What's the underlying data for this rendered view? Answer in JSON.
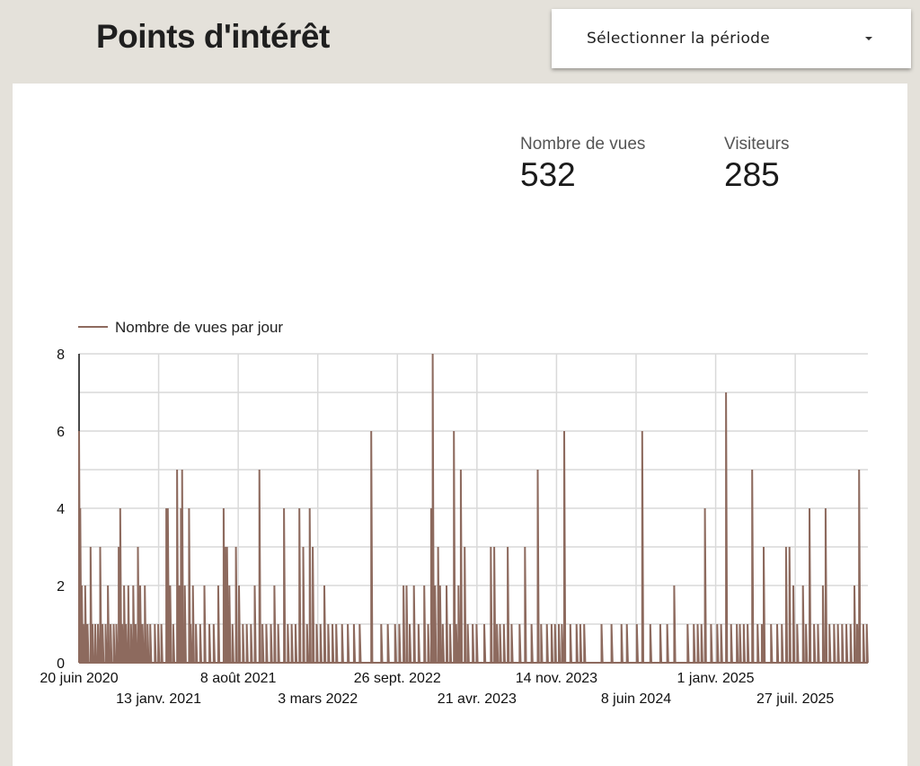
{
  "header": {
    "title": "Points d'intérêt",
    "period_label": "Sélectionner la période"
  },
  "kpis": [
    {
      "label": "Nombre de vues",
      "value": "532"
    },
    {
      "label": "Visiteurs",
      "value": "285"
    }
  ],
  "colors": {
    "series": "#8d6a5e",
    "grid": "#d9d9d9",
    "background": "#e4e1da"
  },
  "chart_data": {
    "type": "line",
    "title": "",
    "xlabel": "",
    "ylabel": "",
    "ylim": [
      0,
      8
    ],
    "yticks": [
      "0",
      "2",
      "4",
      "6",
      "8"
    ],
    "xlim": [
      "2020-06-20",
      "2026-02-01"
    ],
    "xticks": [
      {
        "date": "2020-06-20",
        "label": "20 juin 2020"
      },
      {
        "date": "2021-01-13",
        "label": "13 janv. 2021"
      },
      {
        "date": "2021-08-08",
        "label": "8 août 2021"
      },
      {
        "date": "2022-03-03",
        "label": "3 mars 2022"
      },
      {
        "date": "2022-09-26",
        "label": "26 sept. 2022"
      },
      {
        "date": "2023-04-21",
        "label": "21 avr. 2023"
      },
      {
        "date": "2023-11-14",
        "label": "14 nov. 2023"
      },
      {
        "date": "2024-06-08",
        "label": "8 juin 2024"
      },
      {
        "date": "2025-01-01",
        "label": "1 janv. 2025"
      },
      {
        "date": "2025-07-27",
        "label": "27 juil. 2025"
      }
    ],
    "grid": true,
    "legend_position": "top-left",
    "series": [
      {
        "name": "Nombre de vues par jour",
        "baseline": 0,
        "points": [
          [
            "2020-06-20",
            6
          ],
          [
            "2020-06-23",
            4
          ],
          [
            "2020-06-27",
            2
          ],
          [
            "2020-07-01",
            1
          ],
          [
            "2020-07-06",
            2
          ],
          [
            "2020-07-12",
            1
          ],
          [
            "2020-07-20",
            3
          ],
          [
            "2020-07-25",
            1
          ],
          [
            "2020-08-01",
            1
          ],
          [
            "2020-08-08",
            1
          ],
          [
            "2020-08-14",
            3
          ],
          [
            "2020-08-20",
            1
          ],
          [
            "2020-08-28",
            1
          ],
          [
            "2020-09-03",
            2
          ],
          [
            "2020-09-10",
            1
          ],
          [
            "2020-09-18",
            1
          ],
          [
            "2020-09-25",
            1
          ],
          [
            "2020-10-01",
            3
          ],
          [
            "2020-10-05",
            4
          ],
          [
            "2020-10-10",
            1
          ],
          [
            "2020-10-15",
            2
          ],
          [
            "2020-10-20",
            1
          ],
          [
            "2020-10-26",
            2
          ],
          [
            "2020-11-02",
            1
          ],
          [
            "2020-11-08",
            2
          ],
          [
            "2020-11-14",
            1
          ],
          [
            "2020-11-20",
            3
          ],
          [
            "2020-11-26",
            2
          ],
          [
            "2020-12-02",
            1
          ],
          [
            "2020-12-08",
            2
          ],
          [
            "2020-12-15",
            1
          ],
          [
            "2020-12-22",
            1
          ],
          [
            "2021-01-03",
            1
          ],
          [
            "2021-01-12",
            1
          ],
          [
            "2021-01-20",
            1
          ],
          [
            "2021-02-02",
            4
          ],
          [
            "2021-02-06",
            4
          ],
          [
            "2021-02-12",
            2
          ],
          [
            "2021-02-20",
            1
          ],
          [
            "2021-03-02",
            5
          ],
          [
            "2021-03-08",
            2
          ],
          [
            "2021-03-12",
            4
          ],
          [
            "2021-03-15",
            5
          ],
          [
            "2021-03-22",
            2
          ],
          [
            "2021-04-02",
            4
          ],
          [
            "2021-04-06",
            1
          ],
          [
            "2021-04-12",
            2
          ],
          [
            "2021-04-20",
            1
          ],
          [
            "2021-05-01",
            1
          ],
          [
            "2021-05-12",
            2
          ],
          [
            "2021-05-25",
            1
          ],
          [
            "2021-06-05",
            1
          ],
          [
            "2021-06-17",
            2
          ],
          [
            "2021-07-01",
            4
          ],
          [
            "2021-07-05",
            3
          ],
          [
            "2021-07-10",
            3
          ],
          [
            "2021-07-16",
            2
          ],
          [
            "2021-07-24",
            1
          ],
          [
            "2021-08-02",
            3
          ],
          [
            "2021-08-10",
            2
          ],
          [
            "2021-08-20",
            1
          ],
          [
            "2021-08-30",
            1
          ],
          [
            "2021-09-10",
            1
          ],
          [
            "2021-09-20",
            2
          ],
          [
            "2021-10-02",
            5
          ],
          [
            "2021-10-10",
            1
          ],
          [
            "2021-10-20",
            1
          ],
          [
            "2021-11-01",
            1
          ],
          [
            "2021-11-10",
            2
          ],
          [
            "2021-11-20",
            1
          ],
          [
            "2021-12-05",
            4
          ],
          [
            "2021-12-15",
            1
          ],
          [
            "2021-12-25",
            1
          ],
          [
            "2022-01-04",
            1
          ],
          [
            "2022-01-14",
            4
          ],
          [
            "2022-01-24",
            3
          ],
          [
            "2022-02-03",
            1
          ],
          [
            "2022-02-10",
            4
          ],
          [
            "2022-02-18",
            3
          ],
          [
            "2022-02-28",
            1
          ],
          [
            "2022-03-10",
            1
          ],
          [
            "2022-03-20",
            2
          ],
          [
            "2022-03-30",
            1
          ],
          [
            "2022-04-10",
            1
          ],
          [
            "2022-04-20",
            1
          ],
          [
            "2022-05-05",
            1
          ],
          [
            "2022-05-20",
            1
          ],
          [
            "2022-06-05",
            1
          ],
          [
            "2022-06-20",
            1
          ],
          [
            "2022-07-20",
            6
          ],
          [
            "2022-08-15",
            1
          ],
          [
            "2022-09-01",
            1
          ],
          [
            "2022-09-20",
            1
          ],
          [
            "2022-10-01",
            1
          ],
          [
            "2022-10-12",
            2
          ],
          [
            "2022-10-20",
            2
          ],
          [
            "2022-10-28",
            1
          ],
          [
            "2022-11-08",
            2
          ],
          [
            "2022-11-20",
            1
          ],
          [
            "2022-12-05",
            2
          ],
          [
            "2022-12-15",
            1
          ],
          [
            "2022-12-23",
            4
          ],
          [
            "2022-12-27",
            8
          ],
          [
            "2023-01-02",
            2
          ],
          [
            "2023-01-10",
            3
          ],
          [
            "2023-01-15",
            2
          ],
          [
            "2023-01-22",
            1
          ],
          [
            "2023-02-01",
            2
          ],
          [
            "2023-02-10",
            1
          ],
          [
            "2023-02-20",
            6
          ],
          [
            "2023-02-26",
            1
          ],
          [
            "2023-03-04",
            2
          ],
          [
            "2023-03-10",
            5
          ],
          [
            "2023-03-20",
            3
          ],
          [
            "2023-03-28",
            1
          ],
          [
            "2023-04-10",
            1
          ],
          [
            "2023-04-20",
            1
          ],
          [
            "2023-05-10",
            1
          ],
          [
            "2023-05-27",
            3
          ],
          [
            "2023-06-05",
            3
          ],
          [
            "2023-06-12",
            1
          ],
          [
            "2023-06-20",
            1
          ],
          [
            "2023-06-30",
            1
          ],
          [
            "2023-07-10",
            3
          ],
          [
            "2023-07-20",
            1
          ],
          [
            "2023-08-10",
            1
          ],
          [
            "2023-08-24",
            3
          ],
          [
            "2023-09-10",
            1
          ],
          [
            "2023-09-26",
            5
          ],
          [
            "2023-10-05",
            1
          ],
          [
            "2023-10-20",
            1
          ],
          [
            "2023-11-01",
            1
          ],
          [
            "2023-11-10",
            1
          ],
          [
            "2023-11-20",
            1
          ],
          [
            "2023-11-28",
            1
          ],
          [
            "2023-12-04",
            6
          ],
          [
            "2023-12-20",
            1
          ],
          [
            "2024-01-05",
            1
          ],
          [
            "2024-01-15",
            1
          ],
          [
            "2024-01-25",
            1
          ],
          [
            "2024-03-10",
            1
          ],
          [
            "2024-04-05",
            1
          ],
          [
            "2024-05-01",
            1
          ],
          [
            "2024-05-15",
            1
          ],
          [
            "2024-06-10",
            1
          ],
          [
            "2024-06-24",
            6
          ],
          [
            "2024-07-15",
            1
          ],
          [
            "2024-08-10",
            1
          ],
          [
            "2024-08-28",
            1
          ],
          [
            "2024-09-15",
            2
          ],
          [
            "2024-10-20",
            1
          ],
          [
            "2024-11-05",
            1
          ],
          [
            "2024-11-15",
            1
          ],
          [
            "2024-11-25",
            1
          ],
          [
            "2024-12-04",
            4
          ],
          [
            "2024-12-20",
            1
          ],
          [
            "2025-01-05",
            1
          ],
          [
            "2025-01-15",
            1
          ],
          [
            "2025-01-28",
            7
          ],
          [
            "2025-02-10",
            1
          ],
          [
            "2025-02-25",
            1
          ],
          [
            "2025-03-05",
            1
          ],
          [
            "2025-03-15",
            1
          ],
          [
            "2025-03-25",
            1
          ],
          [
            "2025-04-06",
            5
          ],
          [
            "2025-04-20",
            1
          ],
          [
            "2025-05-01",
            1
          ],
          [
            "2025-05-06",
            3
          ],
          [
            "2025-05-25",
            1
          ],
          [
            "2025-06-10",
            1
          ],
          [
            "2025-06-22",
            1
          ],
          [
            "2025-07-03",
            3
          ],
          [
            "2025-07-12",
            3
          ],
          [
            "2025-07-22",
            2
          ],
          [
            "2025-08-01",
            1
          ],
          [
            "2025-08-16",
            2
          ],
          [
            "2025-08-24",
            1
          ],
          [
            "2025-09-02",
            4
          ],
          [
            "2025-09-14",
            1
          ],
          [
            "2025-09-24",
            1
          ],
          [
            "2025-10-07",
            2
          ],
          [
            "2025-10-14",
            4
          ],
          [
            "2025-10-24",
            1
          ],
          [
            "2025-11-05",
            1
          ],
          [
            "2025-11-15",
            1
          ],
          [
            "2025-11-26",
            1
          ],
          [
            "2025-12-07",
            1
          ],
          [
            "2025-12-18",
            1
          ],
          [
            "2025-12-28",
            2
          ],
          [
            "2026-01-04",
            1
          ],
          [
            "2026-01-09",
            5
          ],
          [
            "2026-01-20",
            1
          ],
          [
            "2026-01-29",
            1
          ]
        ]
      }
    ]
  }
}
